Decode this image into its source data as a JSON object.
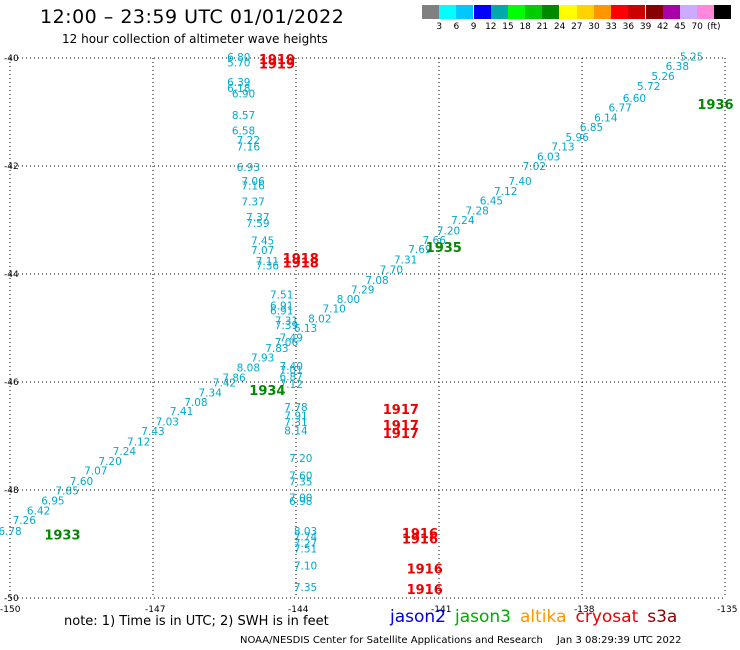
{
  "title": "12:00 – 23:59 UTC 01/01/2022",
  "subtitle": "12 hour collection of altimeter wave heights",
  "legend": {
    "items": [
      {
        "label": "",
        "color": "#808080"
      },
      {
        "label": "3",
        "color": "#00ffff"
      },
      {
        "label": "6",
        "color": "#00c8ff"
      },
      {
        "label": "9",
        "color": "#0000ff"
      },
      {
        "label": "12",
        "color": "#00aaaa"
      },
      {
        "label": "15",
        "color": "#00ff00"
      },
      {
        "label": "18",
        "color": "#00cc00"
      },
      {
        "label": "21",
        "color": "#008800"
      },
      {
        "label": "24",
        "color": "#ffff00"
      },
      {
        "label": "27",
        "color": "#ffd200"
      },
      {
        "label": "30",
        "color": "#ff9600"
      },
      {
        "label": "33",
        "color": "#ff0000"
      },
      {
        "label": "36",
        "color": "#cc0000"
      },
      {
        "label": "39",
        "color": "#880000"
      },
      {
        "label": "42",
        "color": "#aa00aa"
      },
      {
        "label": "45",
        "color": "#ccaaff"
      },
      {
        "label": "70",
        "color": "#ff88dd"
      },
      {
        "label": "",
        "color": "#000000"
      }
    ],
    "unit": "(ft)"
  },
  "axes": {
    "lat_labels": [
      "-40",
      "-42",
      "-44",
      "-46",
      "-48",
      "-50"
    ],
    "lon_labels": [
      "-150",
      "-147",
      "-144",
      "-141",
      "-138",
      "-135"
    ]
  },
  "colors": {
    "values": "#00aacc",
    "red": "#ee0000",
    "green": "#008800"
  },
  "tracks": {
    "1933": [
      {
        "lat": -48.76,
        "lon": -150.0,
        "v": "6.78"
      },
      {
        "lat": -48.56,
        "lon": -149.7,
        "v": "7.26"
      },
      {
        "lat": -48.38,
        "lon": -149.4,
        "v": "6.42"
      },
      {
        "lat": -48.19,
        "lon": -149.1,
        "v": "6.95"
      },
      {
        "lat": -48.01,
        "lon": -148.8,
        "v": "7.85"
      },
      {
        "lat": -47.83,
        "lon": -148.5,
        "v": "7.60"
      },
      {
        "lat": -47.64,
        "lon": -148.2,
        "v": "7.07"
      },
      {
        "lat": -47.46,
        "lon": -147.9,
        "v": "7.20"
      },
      {
        "lat": -47.28,
        "lon": -147.6,
        "v": "7.24"
      },
      {
        "lat": -47.1,
        "lon": -147.3,
        "v": "7.12"
      },
      {
        "lat": -46.91,
        "lon": -147.0,
        "v": "7.43"
      },
      {
        "lat": -46.73,
        "lon": -146.7,
        "v": "7.03"
      },
      {
        "lat": -46.54,
        "lon": -146.4,
        "v": "7.41"
      },
      {
        "lat": -46.37,
        "lon": -146.1,
        "v": "7.08"
      },
      {
        "lat": -46.19,
        "lon": -145.8,
        "v": "7.34"
      }
    ],
    "1934": [
      {
        "lat": -46.01,
        "lon": -145.5,
        "v": "7.42"
      },
      {
        "lat": -45.92,
        "lon": -145.3,
        "v": "7.86"
      },
      {
        "lat": -45.73,
        "lon": -145.0,
        "v": "8.08"
      },
      {
        "lat": -45.55,
        "lon": -144.7,
        "v": "7.93"
      },
      {
        "lat": -45.37,
        "lon": -144.4,
        "v": "7.83"
      },
      {
        "lat": -45.18,
        "lon": -144.1,
        "v": "7.49"
      },
      {
        "lat": -45.0,
        "lon": -143.8,
        "v": "6.13"
      },
      {
        "lat": -44.82,
        "lon": -143.5,
        "v": "8.02"
      },
      {
        "lat": -44.64,
        "lon": -143.2,
        "v": "7.10"
      },
      {
        "lat": -44.46,
        "lon": -142.9,
        "v": "8.00"
      },
      {
        "lat": -44.29,
        "lon": -142.6,
        "v": "7.29"
      },
      {
        "lat": -44.11,
        "lon": -142.3,
        "v": "7.08"
      }
    ],
    "1935": [
      {
        "lat": -43.92,
        "lon": -142.0,
        "v": "7.70"
      },
      {
        "lat": -43.73,
        "lon": -141.7,
        "v": "7.31"
      },
      {
        "lat": -43.54,
        "lon": -141.4,
        "v": "7.69"
      },
      {
        "lat": -43.37,
        "lon": -141.1,
        "v": "7.66"
      },
      {
        "lat": -43.19,
        "lon": -140.8,
        "v": "7.20"
      },
      {
        "lat": -43.0,
        "lon": -140.5,
        "v": "7.24"
      },
      {
        "lat": -42.82,
        "lon": -140.2,
        "v": "7.28"
      },
      {
        "lat": -42.64,
        "lon": -139.9,
        "v": "6.45"
      },
      {
        "lat": -42.46,
        "lon": -139.6,
        "v": "7.12"
      },
      {
        "lat": -42.28,
        "lon": -139.3,
        "v": "7.40"
      }
    ],
    "1936": [
      {
        "lat": -42.0,
        "lon": -139.0,
        "v": "7.02"
      },
      {
        "lat": -41.82,
        "lon": -138.7,
        "v": "6.03"
      },
      {
        "lat": -41.64,
        "lon": -138.4,
        "v": "7.13"
      },
      {
        "lat": -41.46,
        "lon": -138.1,
        "v": "5.96"
      },
      {
        "lat": -41.28,
        "lon": -137.8,
        "v": "6.85"
      },
      {
        "lat": -41.1,
        "lon": -137.5,
        "v": "6.14"
      },
      {
        "lat": -40.92,
        "lon": -137.2,
        "v": "6.77"
      },
      {
        "lat": -40.74,
        "lon": -136.9,
        "v": "6.60"
      },
      {
        "lat": -40.52,
        "lon": -136.6,
        "v": "5.72"
      },
      {
        "lat": -40.33,
        "lon": -136.3,
        "v": "5.26"
      },
      {
        "lat": -40.15,
        "lon": -136.0,
        "v": "6.38"
      },
      {
        "lat": -39.97,
        "lon": -135.7,
        "v": "5.25"
      }
    ],
    "1916_1919_lower": [
      {
        "lat": -49.8,
        "lon": -143.8,
        "v": "7.35"
      },
      {
        "lat": -49.4,
        "lon": -143.8,
        "v": "7.10"
      },
      {
        "lat": -49.08,
        "lon": -143.8,
        "v": "7.51"
      },
      {
        "lat": -48.98,
        "lon": -143.8,
        "v": "7.27"
      },
      {
        "lat": -48.86,
        "lon": -143.8,
        "v": "7.74"
      },
      {
        "lat": -48.76,
        "lon": -143.8,
        "v": "8.03"
      },
      {
        "lat": -48.2,
        "lon": -143.9,
        "v": "6.98"
      },
      {
        "lat": -48.14,
        "lon": -143.9,
        "v": "7.00"
      },
      {
        "lat": -47.84,
        "lon": -143.9,
        "v": "7.35"
      },
      {
        "lat": -47.73,
        "lon": -143.9,
        "v": "7.60"
      },
      {
        "lat": -47.41,
        "lon": -143.9,
        "v": "7.20"
      },
      {
        "lat": -46.9,
        "lon": -144.0,
        "v": "8.14"
      },
      {
        "lat": -46.74,
        "lon": -144.0,
        "v": "7.31"
      },
      {
        "lat": -46.62,
        "lon": -144.0,
        "v": "7.91"
      },
      {
        "lat": -46.46,
        "lon": -144.0,
        "v": "7.78"
      },
      {
        "lat": -46.04,
        "lon": -144.1,
        "v": "7.12"
      },
      {
        "lat": -45.9,
        "lon": -144.1,
        "v": "6.87"
      },
      {
        "lat": -45.78,
        "lon": -144.1,
        "v": "7.01"
      },
      {
        "lat": -45.7,
        "lon": -144.1,
        "v": "7.40"
      },
      {
        "lat": -45.26,
        "lon": -144.2,
        "v": "7.06"
      },
      {
        "lat": -44.94,
        "lon": -144.2,
        "v": "7.39"
      },
      {
        "lat": -44.86,
        "lon": -144.2,
        "v": "7.31"
      },
      {
        "lat": -44.68,
        "lon": -144.3,
        "v": "6.91"
      },
      {
        "lat": -44.58,
        "lon": -144.3,
        "v": "6.91"
      },
      {
        "lat": -44.38,
        "lon": -144.3,
        "v": "7.51"
      }
    ],
    "1918": [
      {
        "lat": -43.84,
        "lon": -144.6,
        "v": "7.36"
      },
      {
        "lat": -43.76,
        "lon": -144.6,
        "v": "7.11"
      },
      {
        "lat": -43.56,
        "lon": -144.7,
        "v": "7.07"
      },
      {
        "lat": -43.38,
        "lon": -144.7,
        "v": "7.45"
      },
      {
        "lat": -43.06,
        "lon": -144.8,
        "v": "7.59"
      },
      {
        "lat": -42.94,
        "lon": -144.8,
        "v": "7.37"
      },
      {
        "lat": -42.66,
        "lon": -144.9,
        "v": "7.37"
      },
      {
        "lat": -42.36,
        "lon": -144.9,
        "v": "7.16"
      },
      {
        "lat": -42.28,
        "lon": -144.9,
        "v": "7.06"
      },
      {
        "lat": -42.02,
        "lon": -145.0,
        "v": "6.93"
      },
      {
        "lat": -41.64,
        "lon": -145.0,
        "v": "7.16"
      },
      {
        "lat": -41.52,
        "lon": -145.0,
        "v": "7.22"
      },
      {
        "lat": -41.34,
        "lon": -145.1,
        "v": "6.58"
      },
      {
        "lat": -41.06,
        "lon": -145.1,
        "v": "8.57"
      },
      {
        "lat": -40.66,
        "lon": -145.1,
        "v": "6.90"
      },
      {
        "lat": -40.56,
        "lon": -145.2,
        "v": "6.18"
      },
      {
        "lat": -40.44,
        "lon": -145.2,
        "v": "6.39"
      },
      {
        "lat": -40.08,
        "lon": -145.2,
        "v": "5.70"
      },
      {
        "lat": -39.98,
        "lon": -145.2,
        "v": "6.80"
      }
    ]
  },
  "labels": [
    {
      "text": "1919",
      "color": "red",
      "lat": -40.02,
      "lon": -144.4
    },
    {
      "text": "1919",
      "color": "red",
      "lat": -40.1,
      "lon": -144.4
    },
    {
      "text": "1936",
      "color": "green",
      "lat": -40.85,
      "lon": -135.2
    },
    {
      "text": "1935",
      "color": "green",
      "lat": -43.5,
      "lon": -140.9
    },
    {
      "text": "1918",
      "color": "red",
      "lat": -43.7,
      "lon": -143.9
    },
    {
      "text": "1918",
      "color": "red",
      "lat": -43.79,
      "lon": -143.9
    },
    {
      "text": "1934",
      "color": "green",
      "lat": -46.15,
      "lon": -144.6
    },
    {
      "text": "1917",
      "color": "red",
      "lat": -46.5,
      "lon": -141.8
    },
    {
      "text": "1917",
      "color": "red",
      "lat": -46.8,
      "lon": -141.8
    },
    {
      "text": "1917",
      "color": "red",
      "lat": -46.94,
      "lon": -141.8
    },
    {
      "text": "1933",
      "color": "green",
      "lat": -48.82,
      "lon": -148.9
    },
    {
      "text": "1916",
      "color": "red",
      "lat": -48.8,
      "lon": -141.4
    },
    {
      "text": "1916",
      "color": "red",
      "lat": -48.9,
      "lon": -141.4
    },
    {
      "text": "1916",
      "color": "red",
      "lat": -49.45,
      "lon": -141.3
    },
    {
      "text": "1916",
      "color": "red",
      "lat": -49.83,
      "lon": -141.3
    }
  ],
  "note": "note:  1) Time is in UTC; 2) SWH is in feet",
  "satellites": [
    {
      "name": "jason2",
      "color": "#0000dd"
    },
    {
      "name": "jason3",
      "color": "#00aa00"
    },
    {
      "name": "altika",
      "color": "#ff9600"
    },
    {
      "name": "cryosat",
      "color": "#ee0000"
    },
    {
      "name": "s3a",
      "color": "#880000"
    }
  ],
  "credit": "NOAA/NESDIS Center for Satellite Applications and Research",
  "timestamp": "Jan  3 08:29:39 UTC 2022"
}
